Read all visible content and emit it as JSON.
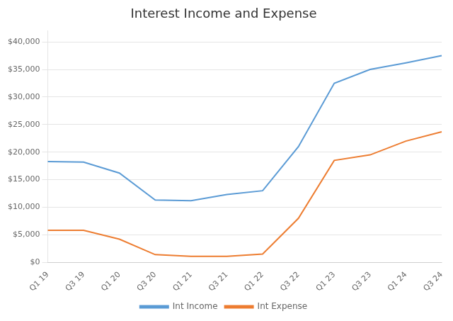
{
  "chart_data": {
    "type": "line",
    "title": "Interest Income and Expense",
    "categories": [
      "Q1 19",
      "Q3 19",
      "Q1 20",
      "Q3 20",
      "Q1 21",
      "Q3 21",
      "Q1 22",
      "Q3 22",
      "Q1 23",
      "Q3 23",
      "Q1 24",
      "Q3 24"
    ],
    "series": [
      {
        "name": "Int Income",
        "color": "#5B9BD5",
        "values": [
          18300,
          18200,
          16200,
          11300,
          11200,
          12300,
          13000,
          21000,
          32500,
          35000,
          36200,
          37500
        ]
      },
      {
        "name": "Int Expense",
        "color": "#ED7D31",
        "values": [
          5800,
          5800,
          4200,
          1400,
          1100,
          1100,
          1500,
          8000,
          18500,
          19500,
          22000,
          23700
        ]
      }
    ],
    "ylim": [
      0,
      42000
    ],
    "yticks": [
      {
        "value": 0,
        "label": "$0"
      },
      {
        "value": 5000,
        "label": "$5,000"
      },
      {
        "value": 10000,
        "label": "$10,000"
      },
      {
        "value": 15000,
        "label": "$15,000"
      },
      {
        "value": 20000,
        "label": "$20,000"
      },
      {
        "value": 25000,
        "label": "$25,000"
      },
      {
        "value": 30000,
        "label": "$30,000"
      },
      {
        "value": 35000,
        "label": "$35,000"
      },
      {
        "value": 40000,
        "label": "$40,000"
      }
    ],
    "grid": true,
    "legend": "bottom"
  }
}
